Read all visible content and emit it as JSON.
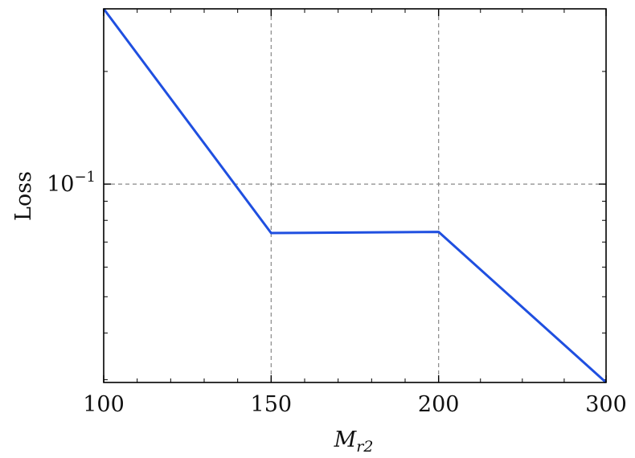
{
  "chart_data": {
    "type": "line",
    "title": "",
    "xlabel": "M_r2",
    "xlabel_main": "M",
    "xlabel_sub": "r2",
    "ylabel": "Loss",
    "x_scale": "piecewise-linear",
    "y_scale": "log",
    "xlim": [
      100,
      300
    ],
    "ylim": [
      0.0295,
      0.294
    ],
    "x_ticks": [
      100,
      150,
      200,
      300
    ],
    "x_tick_labels": [
      "100",
      "150",
      "200",
      "300"
    ],
    "y_tick_labels": [
      {
        "value": 0.1,
        "base": "10",
        "exponent": "−1"
      }
    ],
    "grid": "dashed at x = 150, 200 and y = 0.1",
    "legend": "none",
    "series": [
      {
        "color": "#1f4fe0",
        "x": [
          100,
          150,
          200,
          300
        ],
        "y": [
          0.294,
          0.074,
          0.0745,
          0.0295
        ]
      }
    ]
  }
}
